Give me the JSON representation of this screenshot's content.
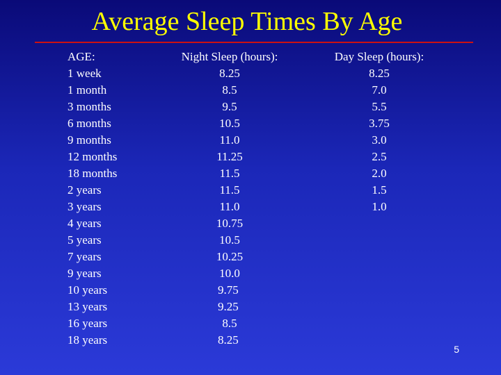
{
  "title": "Average Sleep Times By Age",
  "page_number": "5",
  "columns": {
    "age_header": "AGE:",
    "night_header": "Night Sleep (hours):",
    "day_header": "Day Sleep (hours):"
  },
  "rows": [
    {
      "age": "1 week",
      "night": "8.25",
      "day": "8.25"
    },
    {
      "age": "1 month",
      "night": "8.5",
      "day": "7.0"
    },
    {
      "age": "3 months",
      "night": "9.5",
      "day": "5.5"
    },
    {
      "age": "6 months",
      "night": "10.5",
      "day": "3.75"
    },
    {
      "age": "9 months",
      "night": "11.0",
      "day": "3.0"
    },
    {
      "age": "12 months",
      "night": "11.25",
      "day": "2.5"
    },
    {
      "age": "18 months",
      "night": "11.5",
      "day": "2.0"
    },
    {
      "age": "2 years",
      "night": "11.5",
      "day": "1.5"
    },
    {
      "age": "3 years",
      "night": "11.0",
      "day": "1.0"
    },
    {
      "age": "4 years",
      "night": "10.75",
      "day": ""
    },
    {
      "age": "5 years",
      "night": "10.5",
      "day": ""
    },
    {
      "age": "7 years",
      "night": "10.25",
      "day": ""
    },
    {
      "age": "9 years",
      "night": "10.0",
      "day": ""
    },
    {
      "age": "10 years",
      "night": "9.75",
      "day": ""
    },
    {
      "age": "13 years",
      "night": "9.25",
      "day": ""
    },
    {
      "age": "16 years",
      "night": "8.5",
      "day": ""
    },
    {
      "age": "18 years",
      "night": "8.25",
      "day": ""
    }
  ],
  "colors": {
    "title": "#ffff00",
    "text": "#ffffff",
    "rule": "#cc1111",
    "background_top": "#0a0a78",
    "background_bottom": "#2b3ad8"
  }
}
